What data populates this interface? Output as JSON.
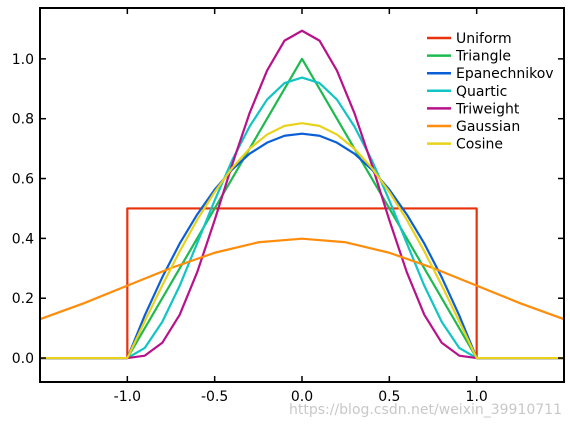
{
  "chart_data": {
    "type": "line",
    "title": "",
    "xlabel": "",
    "ylabel": "",
    "xlim": [
      -1.5,
      1.5
    ],
    "ylim": [
      -0.08,
      1.17
    ],
    "xticks": [
      -1.0,
      -0.5,
      0.0,
      0.5,
      1.0
    ],
    "xtick_labels": [
      "-1.0",
      "-0.5",
      "0.0",
      "0.5",
      "1.0"
    ],
    "yticks": [
      0.0,
      0.2,
      0.4,
      0.6,
      0.8,
      1.0
    ],
    "ytick_labels": [
      "0.0",
      "0.2",
      "0.4",
      "0.6",
      "0.8",
      "1.0"
    ],
    "grid": false,
    "legend_position": "top-right",
    "series": [
      {
        "name": "Uniform",
        "color": "#e8320c",
        "x": [
          -1.5,
          -1.0,
          -1.0,
          1.0,
          1.0,
          1.5
        ],
        "y": [
          0,
          0,
          0.5,
          0.5,
          0,
          0
        ]
      },
      {
        "name": "Triangle",
        "color": "#1fba4f",
        "x": [
          -1.5,
          -1.0,
          0.0,
          1.0,
          1.5
        ],
        "y": [
          0,
          0,
          1.0,
          0,
          0
        ]
      },
      {
        "name": "Epanechnikov",
        "color": "#0b5fd6",
        "x": [
          -1.5,
          -1.0,
          -0.9,
          -0.8,
          -0.7,
          -0.6,
          -0.5,
          -0.4,
          -0.3,
          -0.2,
          -0.1,
          0.0,
          0.1,
          0.2,
          0.3,
          0.4,
          0.5,
          0.6,
          0.7,
          0.8,
          0.9,
          1.0,
          1.5
        ],
        "y": [
          0,
          0,
          0.143,
          0.27,
          0.383,
          0.48,
          0.563,
          0.63,
          0.683,
          0.72,
          0.743,
          0.75,
          0.743,
          0.72,
          0.683,
          0.63,
          0.563,
          0.48,
          0.383,
          0.27,
          0.143,
          0,
          0
        ]
      },
      {
        "name": "Quartic",
        "color": "#13c4c4",
        "x": [
          -1.5,
          -1.0,
          -0.9,
          -0.8,
          -0.7,
          -0.6,
          -0.5,
          -0.4,
          -0.3,
          -0.2,
          -0.1,
          0.0,
          0.1,
          0.2,
          0.3,
          0.4,
          0.5,
          0.6,
          0.7,
          0.8,
          0.9,
          1.0,
          1.5
        ],
        "y": [
          0,
          0,
          0.034,
          0.121,
          0.242,
          0.384,
          0.527,
          0.661,
          0.774,
          0.864,
          0.919,
          0.9375,
          0.919,
          0.864,
          0.774,
          0.661,
          0.527,
          0.384,
          0.242,
          0.121,
          0.034,
          0,
          0
        ]
      },
      {
        "name": "Triweight",
        "color": "#b8128a",
        "x": [
          -1.5,
          -1.0,
          -0.9,
          -0.8,
          -0.7,
          -0.6,
          -0.5,
          -0.4,
          -0.3,
          -0.2,
          -0.1,
          0.0,
          0.1,
          0.2,
          0.3,
          0.4,
          0.5,
          0.6,
          0.7,
          0.8,
          0.9,
          1.0,
          1.5
        ],
        "y": [
          0,
          0,
          0.008,
          0.051,
          0.145,
          0.287,
          0.461,
          0.646,
          0.819,
          0.961,
          1.061,
          1.094,
          1.061,
          0.961,
          0.819,
          0.646,
          0.461,
          0.287,
          0.145,
          0.051,
          0.008,
          0,
          0
        ]
      },
      {
        "name": "Gaussian",
        "color": "#ff8c0a",
        "x": [
          -1.5,
          -1.25,
          -1.0,
          -0.75,
          -0.5,
          -0.25,
          0.0,
          0.25,
          0.5,
          0.75,
          1.0,
          1.25,
          1.5
        ],
        "y": [
          0.13,
          0.183,
          0.242,
          0.301,
          0.352,
          0.387,
          0.399,
          0.387,
          0.352,
          0.301,
          0.242,
          0.183,
          0.13
        ]
      },
      {
        "name": "Cosine",
        "color": "#e8d21a",
        "x": [
          -1.5,
          -1.0,
          -0.9,
          -0.8,
          -0.7,
          -0.6,
          -0.5,
          -0.4,
          -0.3,
          -0.2,
          -0.1,
          0.0,
          0.1,
          0.2,
          0.3,
          0.4,
          0.5,
          0.6,
          0.7,
          0.8,
          0.9,
          1.0,
          1.5
        ],
        "y": [
          0,
          0,
          0.123,
          0.243,
          0.357,
          0.462,
          0.555,
          0.635,
          0.7,
          0.747,
          0.776,
          0.785,
          0.776,
          0.747,
          0.7,
          0.635,
          0.555,
          0.462,
          0.357,
          0.243,
          0.123,
          0,
          0
        ]
      }
    ]
  },
  "watermark": "https://blog.csdn.net/weixin_39910711"
}
